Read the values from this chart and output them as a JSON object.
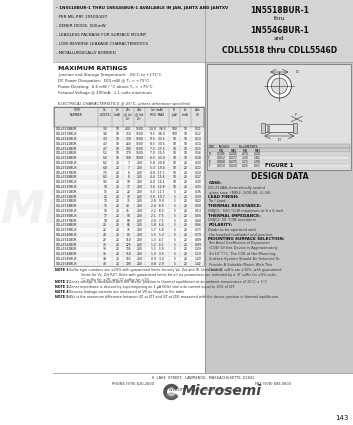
{
  "bg_color": "#d4d4d4",
  "white_bg": "#ffffff",
  "right_col_bg": "#c8c8c8",
  "title_right_lines": [
    "1N5518BUR-1",
    "thru",
    "1N5546BUR-1",
    "and",
    "CDLL5518 thru CDLL5546D"
  ],
  "bullet_lines": [
    "- 1N5518BUR-1 THRU 1N5546BUR-1 AVAILABLE IN JAN, JANTX AND JANTXV",
    "  PER MIL-PRF-19500/437",
    "- ZENER DIODE, 500mW",
    "- LEADLESS PACKAGE FOR SURFACE MOUNT",
    "- LOW REVERSE LEAKAGE CHARACTERISTICS",
    "- METALLURGICALLY BONDED"
  ],
  "max_ratings_title": "MAXIMUM RATINGS",
  "max_ratings_lines": [
    "Junction and Storage Temperature:  -65°C to +175°C",
    "DC Power Dissipation:  500 mW @ Tₖ = +75°C",
    "Power Derating:  6.6 mW / °C above Tₖ = +75°C",
    "Forward Voltage @ 200mA:  1.1 volts maximum"
  ],
  "elec_char_title": "ELECTRICAL CHARACTERISTICS @ 25°C, unless otherwise specified.",
  "col_headers_line1": [
    "TYPE",
    "NOMINAL",
    "ZENER TEST",
    "MAXIMUM ZENER",
    "MAXIMUM",
    "MAXIMUM",
    "LEAKAGE"
  ],
  "col_headers_line2": [
    "NUMBER",
    "ZENER",
    "CURRENT",
    "IMPEDANCE",
    "REVERSE",
    "REGULATOR",
    "CURRENT"
  ],
  "col_headers_line3": [
    "",
    "VOLTAGE",
    "",
    "",
    "LEAKAGE",
    "CURRENT",
    "Iᴿ"
  ],
  "col_headers_line4": [
    "",
    "",
    "",
    "",
    "CURRENT",
    "",
    "mA"
  ],
  "col_sub1": [
    "",
    "Vz (VOLTS)",
    "Izt (mA)",
    "Zzt @ Izt (Ω)",
    "Zzk @ Izk (Ω)",
    "Izt (mA) MIN MAX",
    "IR (μA)",
    "Izt (mA)",
    "Vᴿ (V)"
  ],
  "notes": [
    "NOTE 1   Suffix type numbers are ±20% with guaranteed limits for only Vz, Zzt and IR. Units with 'A' suffix are ±10%, with guaranteed\n           limits for Vz, Zzt RZT. Units with guaranteed limits for all six parameters are indicated by a 'B' suffix for ±5% units,\n           'C' suffix for ±2% and 'D' suffix for ±1%.",
    "NOTE 2   Zener voltage is measured with the device junction in thermal equilibrium at an ambient temperature of 25°C ± 1°C.",
    "NOTE 3   Zener impedance is derived by superimposing on 1 μA 60Hz sine a dc current equal to 10% of IZT.",
    "NOTE 4   Reverse leakage currents are measured at VR as shown in the table.",
    "NOTE 5   ΔVz is the maximum difference between VZ at IZT and VZ at IZK, measured with the device junction in thermal equilibrium."
  ],
  "figure_title": "FIGURE 1",
  "design_data_title": "DESIGN DATA",
  "design_data_lines": [
    [
      "CASE:",
      " DO-213AA, hermetically sealed\n glass case. (MELF, SOD-80, LL-34)"
    ],
    [
      "LEAD FINISH:",
      " Tin / Lead"
    ],
    [
      "THERMAL RESISTANCE:",
      " (RθJC):  500 °C/W maximum at 6 x 6 inch"
    ],
    [
      "THERMAL IMPEDANCE:",
      " (ZθJC): 30 °C/W maximum"
    ],
    [
      "POLARITY:",
      " Diode to be operated with\n the banded (cathode) end positive."
    ],
    [
      "MOUNTING SURFACE SELECTION:",
      " The Axial Coefficient of Expansion\n (COE) Of this Device is Approximately\n 4×10⁻⁶/°C. The COE of the Mounting\n Surface System Should Be Selected To\n Provide A Suitable Match With This\n Device."
    ]
  ],
  "dim_table": {
    "headers": [
      "DIM",
      "INCHES",
      "",
      "MILLIMETERS",
      ""
    ],
    "subheaders": [
      "",
      "MIN",
      "MAX",
      "MIN",
      "MAX"
    ],
    "rows": [
      [
        "D",
        "0.185",
        "0.205",
        "4.70",
        "5.20"
      ],
      [
        "C",
        "0.052",
        "0.072",
        "1.30",
        "1.82"
      ],
      [
        "E",
        "0.068",
        "0.075",
        "1.73",
        "1.90"
      ],
      [
        "F",
        "0.010",
        "0.020",
        "0.25",
        "0.51"
      ]
    ]
  },
  "footer_company": "Microsemi",
  "footer_address": "6  LAKE  STREET,  LAWRENCE,  MASSACHUSETTS  01841",
  "footer_phone": "PHONE (978) 620-2600",
  "footer_fax": "FAX (978) 689-0803",
  "footer_web": "WEBSITE:  http://www.microsemi.com",
  "page_num": "143",
  "table_rows": [
    [
      "CDLL5518BUR",
      "3.3",
      "10",
      "400",
      "1500",
      "10.0   38.0",
      "100",
      "10",
      "0.11"
    ],
    [
      "CDLL5519BUR",
      "3.6",
      "10",
      "350",
      "1500",
      "9.5   36.0",
      "100",
      "10",
      "0.12"
    ],
    [
      "CDLL5520BUR",
      "3.9",
      "10",
      "300",
      "1500",
      "9.5   33.5",
      "50",
      "10",
      "0.13"
    ],
    [
      "CDLL5521BUR",
      "4.3",
      "10",
      "260",
      "1500",
      "8.5   30.5",
      "10",
      "10",
      "0.14"
    ],
    [
      "CDLL5522BUR",
      "4.7",
      "10",
      "190",
      "1500",
      "7.5   27.5",
      "10",
      "10",
      "0.15"
    ],
    [
      "CDLL5523BUR",
      "5.1",
      "10",
      "170",
      "1500",
      "7.0   25.5",
      "10",
      "10",
      "0.16"
    ],
    [
      "CDLL5524BUR",
      "5.6",
      "10",
      "100",
      "1000",
      "6.5   23.0",
      "10",
      "10",
      "0.18"
    ],
    [
      "CDLL5525BUR",
      "6.2",
      "20",
      "7",
      "200",
      "5.8   20.8",
      "10",
      "20",
      "0.20"
    ],
    [
      "CDLL5526BUR",
      "6.8",
      "20",
      "7",
      "200",
      "5.3   19.0",
      "10",
      "20",
      "0.22"
    ],
    [
      "CDLL5527BUR",
      "7.5",
      "20",
      "6",
      "200",
      "4.8   17.1",
      "10",
      "20",
      "0.24"
    ],
    [
      "CDLL5528BUR",
      "8.2",
      "20",
      "8",
      "200",
      "4.4   15.6",
      "10",
      "20",
      "0.27"
    ],
    [
      "CDLL5529BUR",
      "9.1",
      "20",
      "10",
      "200",
      "4.0   14.1",
      "10",
      "20",
      "0.30"
    ],
    [
      "CDLL5530BUR",
      "10",
      "20",
      "17",
      "200",
      "3.6   12.8",
      "10",
      "20",
      "0.33"
    ],
    [
      "CDLL5531BUR",
      "11",
      "20",
      "22",
      "200",
      "3.3   11.7",
      "5",
      "20",
      "0.36"
    ],
    [
      "CDLL5532BUR",
      "12",
      "20",
      "30",
      "200",
      "3.0   10.7",
      "5",
      "20",
      "0.39"
    ],
    [
      "CDLL5533BUR",
      "13",
      "20",
      "35",
      "200",
      "2.8   9.9",
      "5",
      "20",
      "0.43"
    ],
    [
      "CDLL5534BUR",
      "15",
      "20",
      "40",
      "200",
      "2.4   8.5",
      "5",
      "20",
      "0.50"
    ],
    [
      "CDLL5535BUR",
      "16",
      "20",
      "45",
      "200",
      "2.2   8.0",
      "5",
      "20",
      "0.53"
    ],
    [
      "CDLL5536BUR",
      "17",
      "20",
      "50",
      "200",
      "2.1   7.5",
      "5",
      "20",
      "0.56"
    ],
    [
      "CDLL5537BUR",
      "18",
      "20",
      "60",
      "200",
      "2.0   7.1",
      "5",
      "20",
      "0.60"
    ],
    [
      "CDLL5538BUR",
      "20",
      "20",
      "65",
      "200",
      "1.8   6.4",
      "5",
      "20",
      "0.66"
    ],
    [
      "CDLL5539BUR",
      "22",
      "20",
      "75",
      "200",
      "1.7   5.8",
      "5",
      "20",
      "0.73"
    ],
    [
      "CDLL5540BUR",
      "24",
      "20",
      "80",
      "200",
      "1.5   5.3",
      "5",
      "20",
      "0.79"
    ],
    [
      "CDLL5541BUR",
      "27",
      "20",
      "110",
      "200",
      "1.3   4.7",
      "5",
      "20",
      "0.89"
    ],
    [
      "CDLL5542BUR",
      "30",
      "20",
      "125",
      "200",
      "1.2   4.2",
      "5",
      "20",
      "0.99"
    ],
    [
      "CDLL5543BUR",
      "33",
      "20",
      "135",
      "200",
      "1.1   3.9",
      "5",
      "20",
      "1.09"
    ],
    [
      "CDLL5544BUR",
      "36",
      "20",
      "150",
      "200",
      "1.0   3.5",
      "5",
      "20",
      "1.19"
    ],
    [
      "CDLL5545BUR",
      "39",
      "20",
      "165",
      "200",
      "0.9   3.2",
      "5",
      "20",
      "1.29"
    ],
    [
      "CDLL5546BUR",
      "43",
      "20",
      "190",
      "200",
      "0.8   2.9",
      "5",
      "20",
      "1.42"
    ]
  ]
}
